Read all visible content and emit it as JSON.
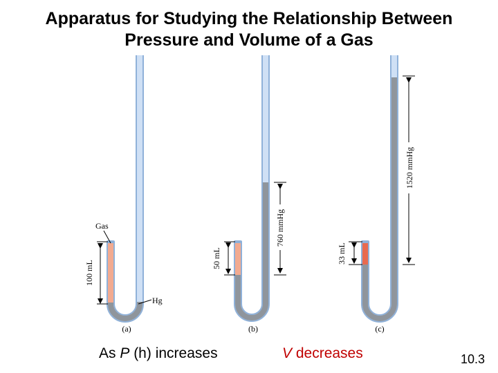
{
  "title": {
    "line1": "Apparatus for Studying the Relationship Between",
    "line2": "Pressure and Volume of a Gas"
  },
  "diagram": {
    "panel_a": {
      "label": "(a)",
      "volume": "100 mL",
      "gas_label": "Gas",
      "hg_label": "Hg"
    },
    "panel_b": {
      "label": "(b)",
      "volume": "50 mL",
      "height": "760 mmHg"
    },
    "panel_c": {
      "label": "(c)",
      "volume": "33 mL",
      "height": "1520 mmHg"
    }
  },
  "captions": {
    "pressure_prefix": "As ",
    "pressure_var": "P",
    "pressure_suffix": " (h) increases",
    "volume_var": "V",
    "volume_suffix": " decreases"
  },
  "slide_number": "10.3",
  "colors": {
    "tube_glass": "#cfe0f5",
    "tube_outline": "#8fb1d9",
    "mercury": "#8f959c",
    "gas_light": "#f2aa90",
    "gas_dark": "#e86a4f"
  }
}
